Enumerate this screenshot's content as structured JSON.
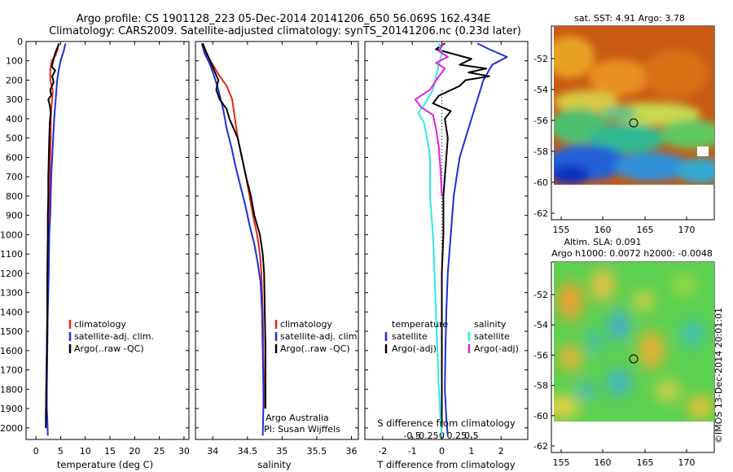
{
  "titles": {
    "line1": "Argo profile: CS 1901128_223 05-Dec-2014 20141206_650 56.069S 162.434E",
    "line2": "Climatology: CARS2009. Satellite-adjusted climatology: synTS_20141206.nc (0.23d later)"
  },
  "colors": {
    "climatology": "#e8241c",
    "satellite": "#1c2fd8",
    "argo": "#000000",
    "salinity_satellite": "#30e8e8",
    "salinity_argo": "#e020e0"
  },
  "chart_data": [
    {
      "type": "line",
      "name": "temperature-panel",
      "xlabel": "temperature (deg C)",
      "xlim": [
        -2,
        31
      ],
      "xticks": [
        0,
        5,
        10,
        15,
        20,
        25,
        30
      ],
      "ylim": [
        2060,
        0
      ],
      "yticks": [
        0,
        100,
        200,
        300,
        400,
        500,
        600,
        700,
        800,
        900,
        1000,
        1100,
        1200,
        1300,
        1400,
        1500,
        1600,
        1700,
        1800,
        1900,
        2000
      ],
      "legend": {
        "position": "middle-left",
        "entries": [
          "climatology",
          "satellite-adj. clim.",
          "Argo(..raw -QC)"
        ]
      },
      "series": [
        {
          "name": "climatology",
          "color": "#e8241c",
          "points": [
            [
              4.6,
              10
            ],
            [
              4.4,
              40
            ],
            [
              4.0,
              70
            ],
            [
              3.2,
              100
            ],
            [
              2.9,
              150
            ],
            [
              2.9,
              200
            ],
            [
              3.4,
              250
            ],
            [
              3.3,
              300
            ],
            [
              3.1,
              350
            ],
            [
              3.0,
              400
            ],
            [
              3.0,
              500
            ],
            [
              2.9,
              600
            ],
            [
              2.8,
              700
            ],
            [
              2.7,
              800
            ],
            [
              2.6,
              900
            ],
            [
              2.5,
              1000
            ],
            [
              2.4,
              1200
            ],
            [
              2.3,
              1400
            ],
            [
              2.2,
              1600
            ],
            [
              2.1,
              1800
            ],
            [
              2.0,
              1950
            ]
          ]
        },
        {
          "name": "satellite-adj. clim.",
          "color": "#1c2fd8",
          "points": [
            [
              6.0,
              10
            ],
            [
              5.6,
              50
            ],
            [
              5.0,
              100
            ],
            [
              4.6,
              150
            ],
            [
              4.3,
              200
            ],
            [
              4.0,
              300
            ],
            [
              3.7,
              400
            ],
            [
              3.5,
              500
            ],
            [
              3.3,
              600
            ],
            [
              3.1,
              700
            ],
            [
              3.0,
              800
            ],
            [
              2.9,
              900
            ],
            [
              2.7,
              1000
            ],
            [
              2.6,
              1200
            ],
            [
              2.4,
              1400
            ],
            [
              2.3,
              1600
            ],
            [
              2.2,
              1800
            ],
            [
              2.2,
              1900
            ],
            [
              2.3,
              1950
            ],
            [
              2.4,
              2040
            ]
          ]
        },
        {
          "name": "Argo(..raw -QC)",
          "color": "#000000",
          "points": [
            [
              4.7,
              10
            ],
            [
              4.2,
              40
            ],
            [
              3.9,
              60
            ],
            [
              3.5,
              100
            ],
            [
              3.2,
              130
            ],
            [
              3.9,
              150
            ],
            [
              3.3,
              180
            ],
            [
              3.6,
              210
            ],
            [
              2.9,
              250
            ],
            [
              3.1,
              280
            ],
            [
              2.5,
              300
            ],
            [
              2.8,
              330
            ],
            [
              3.0,
              370
            ],
            [
              2.8,
              420
            ],
            [
              2.7,
              500
            ],
            [
              2.6,
              600
            ],
            [
              2.5,
              700
            ],
            [
              2.5,
              800
            ],
            [
              2.4,
              900
            ],
            [
              2.4,
              1000
            ],
            [
              2.3,
              1200
            ],
            [
              2.3,
              1400
            ],
            [
              2.2,
              1600
            ],
            [
              2.1,
              1800
            ],
            [
              2.0,
              2000
            ]
          ]
        }
      ]
    },
    {
      "type": "line",
      "name": "salinity-panel",
      "xlabel": "salinity",
      "xlim": [
        33.75,
        36.1
      ],
      "xticks": [
        34,
        34.5,
        35,
        35.5,
        36
      ],
      "ylim": [
        2060,
        0
      ],
      "legend": {
        "position": "middle-right",
        "entries": [
          "climatology",
          "satellite-adj. clim.",
          "Argo(..raw -QC)"
        ]
      },
      "annotations": [
        "Argo Australia",
        "PI: Susan Wijffels"
      ],
      "series": [
        {
          "name": "climatology",
          "color": "#e8241c",
          "points": [
            [
              33.86,
              10
            ],
            [
              33.9,
              60
            ],
            [
              34.0,
              120
            ],
            [
              34.1,
              180
            ],
            [
              34.2,
              230
            ],
            [
              34.28,
              300
            ],
            [
              34.32,
              400
            ],
            [
              34.36,
              500
            ],
            [
              34.42,
              600
            ],
            [
              34.48,
              700
            ],
            [
              34.53,
              800
            ],
            [
              34.58,
              900
            ],
            [
              34.64,
              1000
            ],
            [
              34.68,
              1100
            ],
            [
              34.7,
              1200
            ],
            [
              34.72,
              1400
            ],
            [
              34.73,
              1600
            ],
            [
              34.74,
              1800
            ],
            [
              34.74,
              1900
            ]
          ]
        },
        {
          "name": "satellite-adj. clim.",
          "color": "#1c2fd8",
          "points": [
            [
              33.84,
              10
            ],
            [
              33.88,
              60
            ],
            [
              33.96,
              120
            ],
            [
              34.02,
              180
            ],
            [
              34.08,
              250
            ],
            [
              34.15,
              350
            ],
            [
              34.2,
              450
            ],
            [
              34.27,
              550
            ],
            [
              34.33,
              650
            ],
            [
              34.4,
              750
            ],
            [
              34.47,
              850
            ],
            [
              34.53,
              950
            ],
            [
              34.6,
              1050
            ],
            [
              34.65,
              1150
            ],
            [
              34.69,
              1250
            ],
            [
              34.71,
              1400
            ],
            [
              34.72,
              1600
            ],
            [
              34.73,
              1800
            ],
            [
              34.73,
              1900
            ],
            [
              34.72,
              2040
            ]
          ]
        },
        {
          "name": "Argo(..raw -QC)",
          "color": "#000000",
          "points": [
            [
              33.85,
              10
            ],
            [
              33.9,
              50
            ],
            [
              33.96,
              100
            ],
            [
              34.02,
              150
            ],
            [
              34.08,
              200
            ],
            [
              34.05,
              250
            ],
            [
              34.1,
              300
            ],
            [
              34.2,
              350
            ],
            [
              34.24,
              400
            ],
            [
              34.3,
              450
            ],
            [
              34.36,
              500
            ],
            [
              34.42,
              600
            ],
            [
              34.48,
              700
            ],
            [
              34.55,
              800
            ],
            [
              34.6,
              900
            ],
            [
              34.68,
              1000
            ],
            [
              34.72,
              1100
            ],
            [
              34.74,
              1200
            ],
            [
              34.75,
              1400
            ],
            [
              34.76,
              1600
            ],
            [
              34.76,
              1800
            ],
            [
              34.76,
              1900
            ]
          ]
        }
      ]
    },
    {
      "type": "line",
      "name": "difference-panel",
      "xlabel": "T difference from climatology",
      "xlabel_top": "S difference from climatology",
      "xlim": [
        -2.6,
        2.9
      ],
      "xticks": [
        -2,
        -1,
        0,
        1,
        2
      ],
      "secondary_xticks": [
        -0.5,
        -0.25,
        0,
        0.25,
        0.5
      ],
      "ylim": [
        2060,
        0
      ],
      "legend": {
        "position": "middle",
        "entries": [
          "temperature",
          "satellite",
          "Argo(-adj)",
          "salinity",
          "satellite",
          "Argo(-adj)"
        ]
      },
      "series": [
        {
          "name": "temperature satellite",
          "color": "#1c2fd8",
          "points": [
            [
              1.2,
              10
            ],
            [
              1.6,
              40
            ],
            [
              2.2,
              80
            ],
            [
              1.7,
              120
            ],
            [
              1.4,
              200
            ],
            [
              1.2,
              300
            ],
            [
              1.0,
              400
            ],
            [
              0.8,
              500
            ],
            [
              0.6,
              600
            ],
            [
              0.5,
              700
            ],
            [
              0.4,
              800
            ],
            [
              0.35,
              900
            ],
            [
              0.3,
              1000
            ],
            [
              0.2,
              1200
            ],
            [
              0.15,
              1400
            ],
            [
              0.12,
              1600
            ],
            [
              0.1,
              1800
            ],
            [
              0.15,
              1950
            ],
            [
              0.2,
              2040
            ]
          ]
        },
        {
          "name": "temperature Argo(-adj)",
          "color": "#000000",
          "points": [
            [
              0.1,
              10
            ],
            [
              -0.2,
              40
            ],
            [
              1.0,
              90
            ],
            [
              0.6,
              120
            ],
            [
              1.5,
              140
            ],
            [
              0.9,
              160
            ],
            [
              1.6,
              180
            ],
            [
              0.8,
              200
            ],
            [
              0.6,
              230
            ],
            [
              -0.1,
              280
            ],
            [
              -0.3,
              320
            ],
            [
              0.3,
              360
            ],
            [
              0.1,
              400
            ],
            [
              0.2,
              500
            ],
            [
              0.15,
              600
            ],
            [
              0.1,
              700
            ],
            [
              0.05,
              800
            ],
            [
              0.05,
              1000
            ],
            [
              0.0,
              1200
            ],
            [
              0.0,
              1400
            ],
            [
              0.0,
              1600
            ],
            [
              0.0,
              1800
            ],
            [
              0.0,
              2000
            ]
          ]
        },
        {
          "name": "salinity satellite",
          "color": "#30e8e8",
          "points": [
            [
              -0.1,
              10
            ],
            [
              0.0,
              60
            ],
            [
              -0.1,
              120
            ],
            [
              -0.3,
              250
            ],
            [
              -0.6,
              330
            ],
            [
              -0.8,
              370
            ],
            [
              -0.6,
              420
            ],
            [
              -0.5,
              500
            ],
            [
              -0.4,
              600
            ],
            [
              -0.4,
              800
            ],
            [
              -0.3,
              1000
            ],
            [
              -0.25,
              1200
            ],
            [
              -0.2,
              1400
            ],
            [
              -0.15,
              1600
            ],
            [
              -0.1,
              1800
            ],
            [
              -0.05,
              1950
            ],
            [
              0.0,
              2040
            ]
          ]
        },
        {
          "name": "salinity Argo(-adj)",
          "color": "#e020e0",
          "points": [
            [
              0.05,
              10
            ],
            [
              -0.1,
              50
            ],
            [
              0.2,
              80
            ],
            [
              -0.2,
              110
            ],
            [
              0.1,
              140
            ],
            [
              -0.1,
              180
            ],
            [
              -0.4,
              250
            ],
            [
              -0.9,
              300
            ],
            [
              -0.7,
              340
            ],
            [
              -0.3,
              380
            ],
            [
              -0.2,
              450
            ],
            [
              -0.1,
              550
            ],
            [
              -0.05,
              650
            ],
            [
              0.0,
              800
            ]
          ]
        }
      ]
    }
  ],
  "maps": {
    "sst": {
      "title": "sat. SST: 4.91  Argo: 3.78",
      "xticks": [
        "155",
        "160",
        "165",
        "170"
      ],
      "yticks": [
        "-52",
        "-54",
        "-56",
        "-58",
        "-60",
        "-62"
      ]
    },
    "sla": {
      "title_line1": "Altim. SLA: 0.091",
      "title_line2": "Argo h1000: 0.0072  h2000: -0.0048",
      "xticks": [
        "155",
        "160",
        "165",
        "170"
      ],
      "yticks": [
        "-52",
        "-54",
        "-56",
        "-58",
        "-60",
        "-62"
      ]
    }
  },
  "footer_stamp": "©IMOS 13-Dec-2014 20:01:01"
}
